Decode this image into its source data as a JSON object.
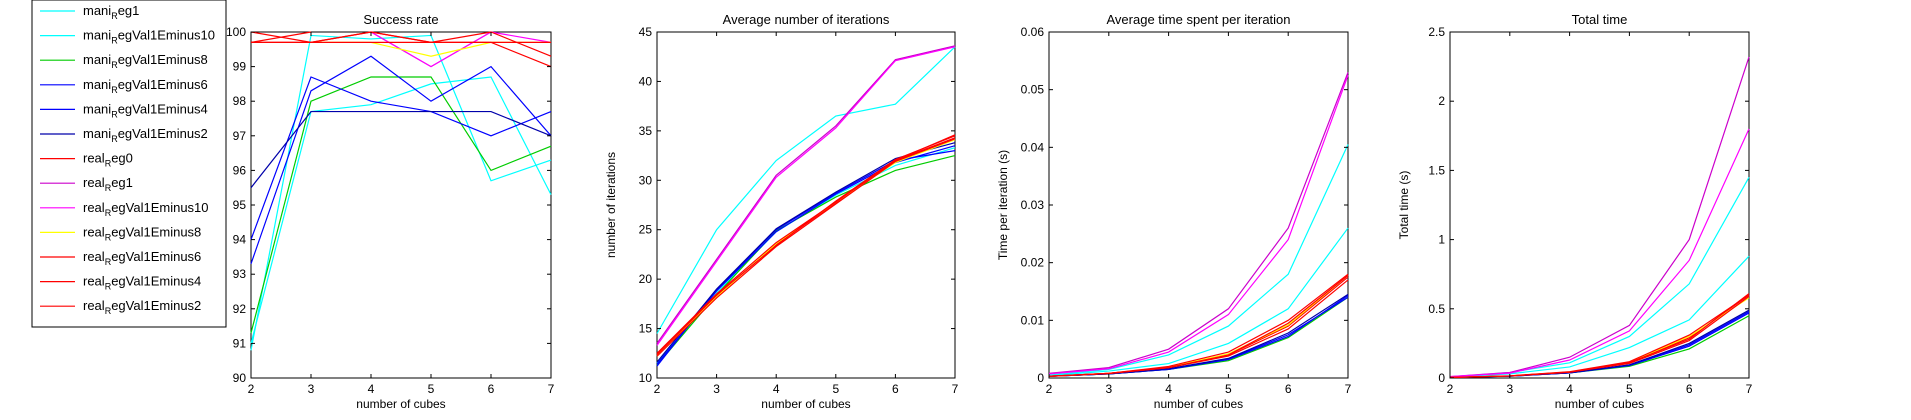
{
  "legend": {
    "placement": "left",
    "entries": [
      {
        "pre": "mani",
        "sub": "R",
        "post": "eg1",
        "color": "#00FFFF"
      },
      {
        "pre": "mani",
        "sub": "R",
        "post": "egVal1Eminus10",
        "color": "#00FFFF"
      },
      {
        "pre": "mani",
        "sub": "R",
        "post": "egVal1Eminus8",
        "color": "#00CC00"
      },
      {
        "pre": "mani",
        "sub": "R",
        "post": "egVal1Eminus6",
        "color": "#0000FF"
      },
      {
        "pre": "mani",
        "sub": "R",
        "post": "egVal1Eminus4",
        "color": "#0000FF"
      },
      {
        "pre": "mani",
        "sub": "R",
        "post": "egVal1Eminus2",
        "color": "#0000AA"
      },
      {
        "pre": "real",
        "sub": "R",
        "post": "eg0",
        "color": "#FF0000"
      },
      {
        "pre": "real",
        "sub": "R",
        "post": "eg1",
        "color": "#CC00CC"
      },
      {
        "pre": "real",
        "sub": "R",
        "post": "egVal1Eminus10",
        "color": "#FF00FF"
      },
      {
        "pre": "real",
        "sub": "R",
        "post": "egVal1Eminus8",
        "color": "#FFFF00"
      },
      {
        "pre": "real",
        "sub": "R",
        "post": "egVal1Eminus6",
        "color": "#FF0000"
      },
      {
        "pre": "real",
        "sub": "R",
        "post": "egVal1Eminus4",
        "color": "#FF0000"
      },
      {
        "pre": "real",
        "sub": "R",
        "post": "egVal1Eminus2",
        "color": "#FF0000"
      }
    ]
  },
  "chart_data": [
    {
      "type": "line",
      "title": "Success rate",
      "xlabel": "number of cubes",
      "ylabel": "",
      "x": [
        2,
        3,
        4,
        5,
        6,
        7
      ],
      "xlim": [
        2,
        7
      ],
      "ylim": [
        90,
        100
      ],
      "xticks": [
        "2",
        "3",
        "4",
        "5",
        "6",
        "7"
      ],
      "yticks": [
        "90",
        "91",
        "92",
        "93",
        "94",
        "95",
        "96",
        "97",
        "98",
        "99",
        "100"
      ],
      "grid": false,
      "series": [
        {
          "color": "#00FFFF",
          "values": [
            90.8,
            99.9,
            99.8,
            99.9,
            95.7,
            96.3
          ]
        },
        {
          "color": "#00FFFF",
          "values": [
            91.0,
            97.7,
            97.9,
            98.5,
            98.7,
            95.3
          ]
        },
        {
          "color": "#00CC00",
          "values": [
            91.3,
            98.0,
            98.7,
            98.7,
            96.0,
            96.7
          ]
        },
        {
          "color": "#0000FF",
          "values": [
            93.3,
            98.3,
            99.3,
            98.0,
            99.0,
            97.0
          ]
        },
        {
          "color": "#0000FF",
          "values": [
            94.0,
            98.7,
            98.0,
            97.7,
            97.0,
            97.7
          ]
        },
        {
          "color": "#0000AA",
          "values": [
            95.5,
            97.7,
            97.7,
            97.7,
            97.7,
            97.0
          ]
        },
        {
          "color": "#FF0000",
          "values": [
            99.7,
            100.0,
            null,
            null,
            null,
            null
          ]
        },
        {
          "color": "#CC00CC",
          "values": [
            null,
            null,
            100.0,
            99.0,
            100.0,
            null
          ]
        },
        {
          "color": "#FF00FF",
          "values": [
            null,
            null,
            100.0,
            99.0,
            100.0,
            99.7
          ]
        },
        {
          "color": "#FFFF00",
          "values": [
            null,
            99.7,
            99.7,
            99.3,
            99.7,
            99.7
          ]
        },
        {
          "color": "#FF0000",
          "values": [
            99.7,
            99.7,
            99.7,
            99.7,
            99.7,
            99.7
          ]
        },
        {
          "color": "#FF0000",
          "values": [
            100.0,
            99.7,
            100.0,
            99.7,
            100.0,
            99.3
          ]
        },
        {
          "color": "#FF0000",
          "values": [
            99.7,
            99.7,
            100.0,
            99.7,
            99.7,
            99.0
          ]
        }
      ]
    },
    {
      "type": "line",
      "title": "Average number of iterations",
      "xlabel": "number of cubes",
      "ylabel": "number of iterations",
      "x": [
        2,
        3,
        4,
        5,
        6,
        7
      ],
      "xlim": [
        2,
        7
      ],
      "ylim": [
        10,
        45
      ],
      "xticks": [
        "2",
        "3",
        "4",
        "5",
        "6",
        "7"
      ],
      "yticks": [
        "10",
        "15",
        "20",
        "25",
        "30",
        "35",
        "40",
        "45"
      ],
      "grid": false,
      "series": [
        {
          "color": "#00FFFF",
          "values": [
            14.5,
            25.0,
            32.0,
            36.5,
            37.7,
            43.5
          ]
        },
        {
          "color": "#00FFFF",
          "values": [
            11.5,
            18.6,
            24.8,
            28.5,
            31.5,
            33.3
          ]
        },
        {
          "color": "#00CC00",
          "values": [
            11.3,
            18.4,
            24.9,
            28.3,
            31.0,
            32.5
          ]
        },
        {
          "color": "#0000FF",
          "values": [
            11.2,
            18.9,
            25.0,
            28.7,
            32.0,
            33.0
          ]
        },
        {
          "color": "#0000FF",
          "values": [
            11.4,
            18.8,
            24.8,
            28.6,
            31.8,
            33.5
          ]
        },
        {
          "color": "#0000AA",
          "values": [
            11.6,
            19.0,
            25.1,
            28.8,
            32.2,
            33.8
          ]
        },
        {
          "color": "#FF0000",
          "values": [
            12.3,
            18.3,
            23.5,
            27.7,
            32.0,
            34.3
          ]
        },
        {
          "color": "#CC00CC",
          "values": [
            13.5,
            22.0,
            30.5,
            35.5,
            42.2,
            43.6
          ]
        },
        {
          "color": "#FF00FF",
          "values": [
            13.3,
            21.8,
            30.3,
            35.3,
            42.1,
            43.5
          ]
        },
        {
          "color": "#FFFF00",
          "values": [
            12.2,
            18.2,
            23.6,
            27.8,
            31.8,
            34.1
          ]
        },
        {
          "color": "#FF0000",
          "values": [
            12.4,
            18.4,
            23.4,
            27.9,
            32.1,
            34.5
          ]
        },
        {
          "color": "#FF0000",
          "values": [
            12.2,
            18.1,
            23.3,
            27.6,
            31.9,
            34.2
          ]
        },
        {
          "color": "#FF0000",
          "values": [
            12.5,
            18.5,
            23.7,
            27.8,
            32.0,
            34.6
          ]
        }
      ]
    },
    {
      "type": "line",
      "title": "Average time spent per iteration",
      "xlabel": "number of cubes",
      "ylabel": "Time per iteration (s)",
      "x": [
        2,
        3,
        4,
        5,
        6,
        7
      ],
      "xlim": [
        2,
        7
      ],
      "ylim": [
        0,
        0.06
      ],
      "xticks": [
        "2",
        "3",
        "4",
        "5",
        "6",
        "7"
      ],
      "yticks": [
        "0",
        "0.01",
        "0.02",
        "0.03",
        "0.04",
        "0.05",
        "0.06"
      ],
      "grid": false,
      "series": [
        {
          "color": "#00FFFF",
          "values": [
            0.0004,
            0.0012,
            0.0025,
            0.006,
            0.012,
            0.026
          ]
        },
        {
          "color": "#00FFFF",
          "values": [
            0.0005,
            0.0015,
            0.004,
            0.009,
            0.018,
            0.0405
          ]
        },
        {
          "color": "#00CC00",
          "values": [
            0.0003,
            0.0007,
            0.0015,
            0.003,
            0.007,
            0.014
          ]
        },
        {
          "color": "#0000FF",
          "values": [
            0.0003,
            0.0007,
            0.0015,
            0.0032,
            0.0072,
            0.0143
          ]
        },
        {
          "color": "#0000FF",
          "values": [
            0.0003,
            0.0007,
            0.0015,
            0.0033,
            0.0075,
            0.014
          ]
        },
        {
          "color": "#0000AA",
          "values": [
            0.0003,
            0.0007,
            0.0016,
            0.0034,
            0.0078,
            0.0145
          ]
        },
        {
          "color": "#FF0000",
          "values": [
            0.0003,
            0.0008,
            0.0018,
            0.004,
            0.009,
            0.0175
          ]
        },
        {
          "color": "#CC00CC",
          "values": [
            0.0008,
            0.0018,
            0.005,
            0.012,
            0.026,
            0.053
          ]
        },
        {
          "color": "#FF00FF",
          "values": [
            0.0007,
            0.0016,
            0.0045,
            0.011,
            0.024,
            0.0525
          ]
        },
        {
          "color": "#FFFF00",
          "values": [
            0.0003,
            0.0008,
            0.0019,
            0.0042,
            0.0092,
            0.0178
          ]
        },
        {
          "color": "#FF0000",
          "values": [
            0.0003,
            0.0008,
            0.002,
            0.0045,
            0.01,
            0.018
          ]
        },
        {
          "color": "#FF0000",
          "values": [
            0.0003,
            0.0008,
            0.0018,
            0.0038,
            0.0085,
            0.017
          ]
        },
        {
          "color": "#FF0000",
          "values": [
            0.0003,
            0.0008,
            0.0018,
            0.004,
            0.0095,
            0.0178
          ]
        }
      ]
    },
    {
      "type": "line",
      "title": "Total time",
      "xlabel": "number of cubes",
      "ylabel": "Total time (s)",
      "x": [
        2,
        3,
        4,
        5,
        6,
        7
      ],
      "xlim": [
        2,
        7
      ],
      "ylim": [
        0,
        2.5
      ],
      "xticks": [
        "2",
        "3",
        "4",
        "5",
        "6",
        "7"
      ],
      "yticks": [
        "0",
        "0.5",
        "1",
        "1.5",
        "2",
        "2.5"
      ],
      "grid": false,
      "series": [
        {
          "color": "#00FFFF",
          "values": [
            0.006,
            0.03,
            0.08,
            0.22,
            0.42,
            0.88
          ]
        },
        {
          "color": "#00FFFF",
          "values": [
            0.008,
            0.04,
            0.11,
            0.3,
            0.68,
            1.45
          ]
        },
        {
          "color": "#00CC00",
          "values": [
            0.004,
            0.013,
            0.037,
            0.085,
            0.21,
            0.45
          ]
        },
        {
          "color": "#0000FF",
          "values": [
            0.004,
            0.013,
            0.037,
            0.09,
            0.23,
            0.47
          ]
        },
        {
          "color": "#0000FF",
          "values": [
            0.004,
            0.013,
            0.037,
            0.092,
            0.24,
            0.48
          ]
        },
        {
          "color": "#0000AA",
          "values": [
            0.004,
            0.014,
            0.038,
            0.095,
            0.25,
            0.49
          ]
        },
        {
          "color": "#FF0000",
          "values": [
            0.004,
            0.015,
            0.042,
            0.11,
            0.29,
            0.6
          ]
        },
        {
          "color": "#CC00CC",
          "values": [
            0.01,
            0.04,
            0.15,
            0.38,
            1.0,
            2.32
          ]
        },
        {
          "color": "#FF00FF",
          "values": [
            0.01,
            0.035,
            0.13,
            0.34,
            0.85,
            1.8
          ]
        },
        {
          "color": "#FFFF00",
          "values": [
            0.004,
            0.015,
            0.044,
            0.115,
            0.3,
            0.58
          ]
        },
        {
          "color": "#FF0000",
          "values": [
            0.004,
            0.015,
            0.043,
            0.112,
            0.28,
            0.61
          ]
        },
        {
          "color": "#FF0000",
          "values": [
            0.004,
            0.015,
            0.042,
            0.105,
            0.27,
            0.59
          ]
        },
        {
          "color": "#FF0000",
          "values": [
            0.004,
            0.016,
            0.045,
            0.118,
            0.31,
            0.6
          ]
        }
      ]
    }
  ]
}
